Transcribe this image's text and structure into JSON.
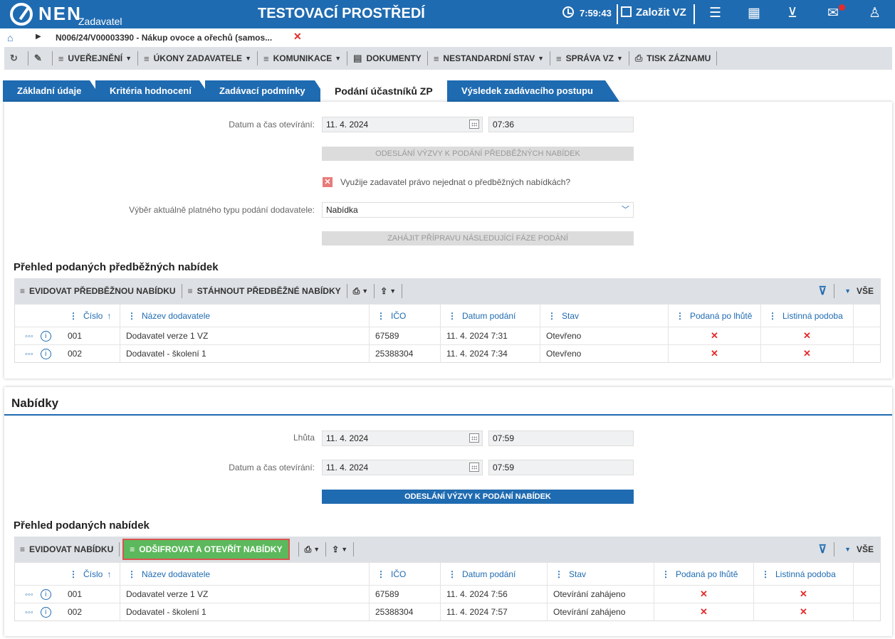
{
  "header": {
    "logo": "NEN",
    "app": "Zadavatel",
    "env": "TESTOVACÍ PROSTŘEDÍ",
    "time": "7:59:43",
    "new_vz": "Založit VZ"
  },
  "breadcrumb": {
    "text": "N006/24/V00003390 - Nákup ovoce a ořechů (samos...",
    "close": "✕"
  },
  "toolbar": [
    {
      "label": "UVEŘEJNĚNÍ",
      "caret": true
    },
    {
      "label": "ÚKONY ZADAVATELE",
      "caret": true
    },
    {
      "label": "KOMUNIKACE",
      "caret": true
    },
    {
      "label": "DOKUMENTY",
      "caret": false
    },
    {
      "label": "NESTANDARDNÍ STAV",
      "caret": true
    },
    {
      "label": "SPRÁVA VZ",
      "caret": true
    },
    {
      "label": "TISK ZÁZNAMU",
      "caret": false
    }
  ],
  "tabs": [
    "Základní údaje",
    "Kritéria hodnocení",
    "Zadávací podmínky",
    "Podání účastníků ZP",
    "Výsledek zadávacího postupu"
  ],
  "pre": {
    "open_label": "Datum a čas otevírání:",
    "open_date": "11. 4. 2024",
    "open_time": "07:36",
    "send_btn": "ODESLÁNÍ VÝZVY K PODÁNÍ PŘEDBĚŽNÝCH NABÍDEK",
    "checkbox_label": "Využije zadavatel právo nejednat o předběžných nabídkách?",
    "type_label": "Výběr aktuálně platného typu podání dodavatele:",
    "type_value": "Nabídka",
    "next_btn": "ZAHÁJIT PŘÍPRAVU NÁSLEDUJÍCÍ FÁZE PODÁNÍ",
    "section": "Přehled podaných předběžných nabídek",
    "bar_evid": "EVIDOVAT PŘEDBĚŽNOU NABÍDKU",
    "bar_down": "STÁHNOUT PŘEDBĚŽNÉ NABÍDKY",
    "all": "VŠE",
    "cols": [
      "Číslo",
      "Název dodavatele",
      "IČO",
      "Datum podání",
      "Stav",
      "Podaná po lhůtě",
      "Listinná podoba"
    ],
    "rows": [
      {
        "num": "001",
        "name": "Dodavatel verze 1 VZ",
        "ico": "67589",
        "date": "11. 4. 2024 7:31",
        "state": "Otevřeno"
      },
      {
        "num": "002",
        "name": "Dodavatel - školení 1",
        "ico": "25388304",
        "date": "11. 4. 2024 7:34",
        "state": "Otevřeno"
      }
    ]
  },
  "offers": {
    "title": "Nabídky",
    "deadline_label": "Lhůta",
    "deadline_date": "11. 4. 2024",
    "deadline_time": "07:59",
    "open_label": "Datum a čas otevírání:",
    "open_date": "11. 4. 2024",
    "open_time": "07:59",
    "send_btn": "ODESLÁNÍ VÝZVY K PODÁNÍ NABÍDEK",
    "section": "Přehled podaných nabídek",
    "bar_evid": "EVIDOVAT NABÍDKU",
    "bar_decrypt": "ODŠIFROVAT A OTEVŘÍT NABÍDKY",
    "all": "VŠE",
    "cols": [
      "Číslo",
      "Název dodavatele",
      "IČO",
      "Datum podání",
      "Stav",
      "Podaná po lhůtě",
      "Listinná podoba"
    ],
    "rows": [
      {
        "num": "001",
        "name": "Dodavatel verze 1 VZ",
        "ico": "67589",
        "date": "11. 4. 2024 7:56",
        "state": "Otevírání zahájeno"
      },
      {
        "num": "002",
        "name": "Dodavatel - školení 1",
        "ico": "25388304",
        "date": "11. 4. 2024 7:57",
        "state": "Otevírání zahájeno"
      }
    ]
  },
  "icons": {
    "x": "✕",
    "sort": "↑",
    "caret": "▾",
    "dots": "⋮",
    "ellipsis": "◦◦◦",
    "info": "i"
  }
}
